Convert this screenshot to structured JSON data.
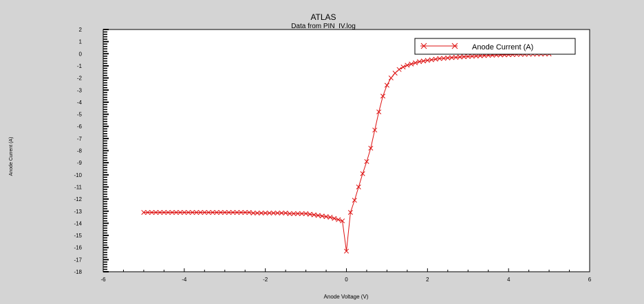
{
  "chart_data": {
    "type": "line",
    "title": "ATLAS",
    "subtitle": "Data from PIN_IV.log",
    "xlabel": "Anode Voltage (V)",
    "ylabel": "Anode Current (A)",
    "xlim": [
      -6,
      6
    ],
    "ylim": [
      -18,
      2
    ],
    "xticks": [
      -6,
      -4,
      -2,
      0,
      2,
      4,
      6
    ],
    "yticks": [
      2,
      1,
      0,
      -1,
      -2,
      -3,
      -4,
      -5,
      -6,
      -7,
      -8,
      -9,
      -10,
      -11,
      -12,
      -13,
      -14,
      -15,
      -16,
      -17,
      -18
    ],
    "legend": {
      "position": "top-right",
      "entries": [
        "Anode Current (A)"
      ]
    },
    "grid": false,
    "colors": {
      "series": "#dd1111",
      "plot_bg": "#ffffff",
      "frame_bg": "#d4d4d4"
    },
    "marker": "x",
    "series": [
      {
        "name": "Anode Current (A)",
        "x": [
          -5.0,
          -4.9,
          -4.8,
          -4.7,
          -4.6,
          -4.5,
          -4.4,
          -4.3,
          -4.2,
          -4.1,
          -4.0,
          -3.9,
          -3.8,
          -3.7,
          -3.6,
          -3.5,
          -3.4,
          -3.3,
          -3.2,
          -3.1,
          -3.0,
          -2.9,
          -2.8,
          -2.7,
          -2.6,
          -2.5,
          -2.4,
          -2.3,
          -2.2,
          -2.1,
          -2.0,
          -1.9,
          -1.8,
          -1.7,
          -1.6,
          -1.5,
          -1.4,
          -1.3,
          -1.2,
          -1.1,
          -1.0,
          -0.9,
          -0.8,
          -0.7,
          -0.6,
          -0.5,
          -0.4,
          -0.3,
          -0.2,
          -0.1,
          0.0,
          0.1,
          0.2,
          0.3,
          0.4,
          0.5,
          0.6,
          0.7,
          0.8,
          0.9,
          1.0,
          1.1,
          1.2,
          1.3,
          1.4,
          1.5,
          1.6,
          1.7,
          1.8,
          1.9,
          2.0,
          2.1,
          2.2,
          2.3,
          2.4,
          2.5,
          2.6,
          2.7,
          2.8,
          2.9,
          3.0,
          3.1,
          3.2,
          3.3,
          3.4,
          3.5,
          3.6,
          3.7,
          3.8,
          3.9,
          4.0,
          4.1,
          4.2,
          4.3,
          4.4,
          4.5,
          4.6,
          4.7,
          4.8,
          4.9,
          5.0
        ],
        "y": [
          -13.1,
          -13.1,
          -13.1,
          -13.1,
          -13.1,
          -13.1,
          -13.1,
          -13.1,
          -13.1,
          -13.1,
          -13.1,
          -13.1,
          -13.1,
          -13.1,
          -13.1,
          -13.1,
          -13.1,
          -13.1,
          -13.1,
          -13.1,
          -13.1,
          -13.1,
          -13.1,
          -13.1,
          -13.1,
          -13.1,
          -13.1,
          -13.15,
          -13.15,
          -13.15,
          -13.15,
          -13.15,
          -13.15,
          -13.15,
          -13.15,
          -13.15,
          -13.2,
          -13.2,
          -13.2,
          -13.2,
          -13.2,
          -13.25,
          -13.3,
          -13.35,
          -13.4,
          -13.45,
          -13.5,
          -13.6,
          -13.7,
          -13.8,
          -16.3,
          -13.1,
          -12.1,
          -11.0,
          -9.9,
          -8.9,
          -7.8,
          -6.3,
          -4.8,
          -3.5,
          -2.6,
          -2.0,
          -1.6,
          -1.3,
          -1.1,
          -0.95,
          -0.85,
          -0.75,
          -0.65,
          -0.6,
          -0.55,
          -0.5,
          -0.45,
          -0.4,
          -0.38,
          -0.35,
          -0.32,
          -0.3,
          -0.27,
          -0.25,
          -0.23,
          -0.21,
          -0.19,
          -0.17,
          -0.15,
          -0.13,
          -0.12,
          -0.11,
          -0.1,
          -0.09,
          -0.08,
          -0.07,
          -0.06,
          -0.05,
          -0.05,
          -0.04,
          -0.04,
          -0.03,
          -0.03,
          -0.02,
          -0.02
        ]
      }
    ]
  }
}
